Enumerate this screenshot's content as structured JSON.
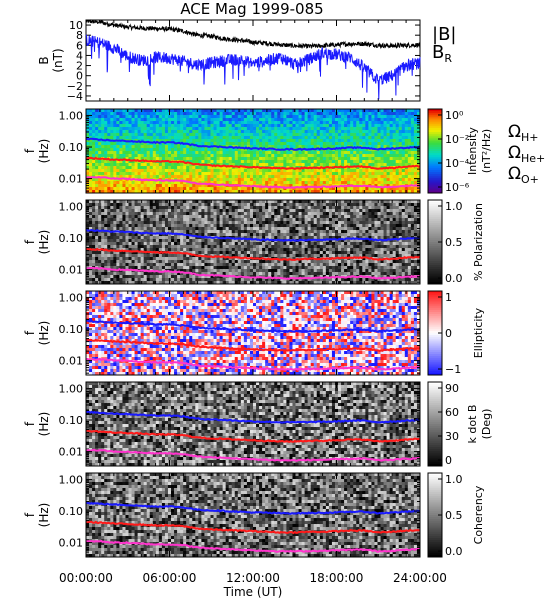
{
  "title": "ACE Mag 1999-085",
  "colors": {
    "bmag": "#000000",
    "br": "#1a1aff",
    "h_line": "#1a1aff",
    "he_line": "#ff1a1a",
    "o_line": "#ff33cc"
  },
  "chart_data": [
    {
      "type": "line",
      "panel": "magnetic-field",
      "ylabel": [
        "B",
        "(nT)"
      ],
      "yticks": [
        10,
        8,
        6,
        4,
        2,
        0,
        -2,
        -4
      ],
      "ylim": [
        -5,
        11
      ],
      "legend": [
        {
          "label": "|B|",
          "color": "#000000"
        },
        {
          "label": "B",
          "sub": "R",
          "color": "#1a1aff"
        }
      ],
      "series": [
        {
          "name": "|B|",
          "x": [
            0,
            1,
            2,
            3,
            4,
            5,
            6,
            7,
            8,
            9,
            10,
            11,
            12,
            13,
            14,
            15,
            16,
            17,
            18,
            19,
            20,
            21,
            22,
            23,
            24
          ],
          "values": [
            10.8,
            10.6,
            10.0,
            9.6,
            9.4,
            9.3,
            9.2,
            8.8,
            8.0,
            7.8,
            7.3,
            7.0,
            6.6,
            6.4,
            6.1,
            5.9,
            5.8,
            5.9,
            6.1,
            6.3,
            6.3,
            6.0,
            5.9,
            6.0,
            6.1
          ]
        },
        {
          "name": "B_R",
          "x": [
            0,
            1,
            2,
            3,
            4,
            5,
            6,
            7,
            8,
            9,
            10,
            11,
            12,
            13,
            14,
            15,
            16,
            17,
            18,
            19,
            20,
            21,
            22,
            23,
            24
          ],
          "values": [
            7.0,
            6.5,
            5.5,
            3.8,
            3.0,
            3.6,
            3.5,
            2.8,
            2.2,
            2.5,
            3.0,
            3.2,
            2.4,
            3.0,
            3.6,
            2.2,
            3.2,
            4.5,
            4.2,
            3.6,
            1.5,
            -1.0,
            0.0,
            2.0,
            2.5
          ]
        }
      ]
    },
    {
      "type": "heatmap",
      "panel": "intensity",
      "ylabel": [
        "f",
        "(Hz)"
      ],
      "yticks": [
        "1.00",
        "0.10",
        "0.01"
      ],
      "colorbar": {
        "label": "Intensity (nT²/Hz)",
        "ticks": [
          "10⁰",
          "10⁻²",
          "10⁻⁴",
          "10⁻⁶"
        ],
        "scale": "log",
        "range": [
          1e-07,
          1.5
        ]
      }
    },
    {
      "type": "heatmap",
      "panel": "polarization",
      "ylabel": [
        "f",
        "(Hz)"
      ],
      "yticks": [
        "1.00",
        "0.10",
        "0.01"
      ],
      "colorbar": {
        "label": "% Polarization",
        "ticks": [
          "1.0",
          "0.5",
          "0.0"
        ],
        "range": [
          0,
          1
        ]
      }
    },
    {
      "type": "heatmap",
      "panel": "ellipticity",
      "ylabel": [
        "f",
        "(Hz)"
      ],
      "yticks": [
        "1.00",
        "0.10",
        "0.01"
      ],
      "colorbar": {
        "label": "Ellipticity",
        "ticks": [
          "1",
          "0",
          "−1"
        ],
        "range": [
          -1,
          1
        ]
      }
    },
    {
      "type": "heatmap",
      "panel": "k-dot-b",
      "ylabel": [
        "f",
        "(Hz)"
      ],
      "yticks": [
        "1.00",
        "0.10",
        "0.01"
      ],
      "colorbar": {
        "label": "k dot B (Deg)",
        "ticks": [
          "90",
          "60",
          "30",
          "0"
        ],
        "range": [
          0,
          90
        ]
      }
    },
    {
      "type": "heatmap",
      "panel": "coherency",
      "ylabel": [
        "f",
        "(Hz)"
      ],
      "yticks": [
        "1.00",
        "0.10",
        "0.01"
      ],
      "colorbar": {
        "label": "Coherency",
        "ticks": [
          "1.0",
          "0.5",
          "0.0"
        ],
        "range": [
          0,
          1
        ]
      },
      "xticks": [
        "00:00:00",
        "06:00:00",
        "12:00:00",
        "18:00:00",
        "24:00:00"
      ],
      "xlabel": "Time (UT)"
    }
  ],
  "gyrofrequency_lines": {
    "x_hours": [
      0,
      1,
      2,
      3,
      4,
      5,
      6,
      7,
      8,
      9,
      10,
      11,
      12,
      13,
      14,
      15,
      16,
      17,
      18,
      19,
      20,
      21,
      22,
      23,
      24
    ],
    "H+": [
      0.18,
      0.17,
      0.16,
      0.155,
      0.145,
      0.14,
      0.14,
      0.13,
      0.11,
      0.105,
      0.1,
      0.095,
      0.09,
      0.088,
      0.085,
      0.085,
      0.086,
      0.088,
      0.09,
      0.095,
      0.095,
      0.085,
      0.09,
      0.095,
      0.1
    ],
    "He+": [
      0.045,
      0.043,
      0.04,
      0.039,
      0.037,
      0.035,
      0.035,
      0.033,
      0.028,
      0.026,
      0.025,
      0.024,
      0.023,
      0.022,
      0.021,
      0.021,
      0.022,
      0.022,
      0.023,
      0.024,
      0.024,
      0.021,
      0.022,
      0.024,
      0.025
    ],
    "O+": [
      0.011,
      0.011,
      0.01,
      0.0098,
      0.0092,
      0.0088,
      0.0088,
      0.0083,
      0.007,
      0.0066,
      0.0063,
      0.006,
      0.0057,
      0.0055,
      0.0053,
      0.0053,
      0.0054,
      0.0055,
      0.0057,
      0.0059,
      0.006,
      0.0053,
      0.0055,
      0.0059,
      0.0062
    ]
  },
  "species_legend": [
    {
      "label": "Ω",
      "sub": "H+",
      "color": "#1a1aff"
    },
    {
      "label": "Ω",
      "sub": "He+",
      "color": "#ff1a1a"
    },
    {
      "label": "Ω",
      "sub": "O+",
      "color": "#ff33cc"
    }
  ]
}
